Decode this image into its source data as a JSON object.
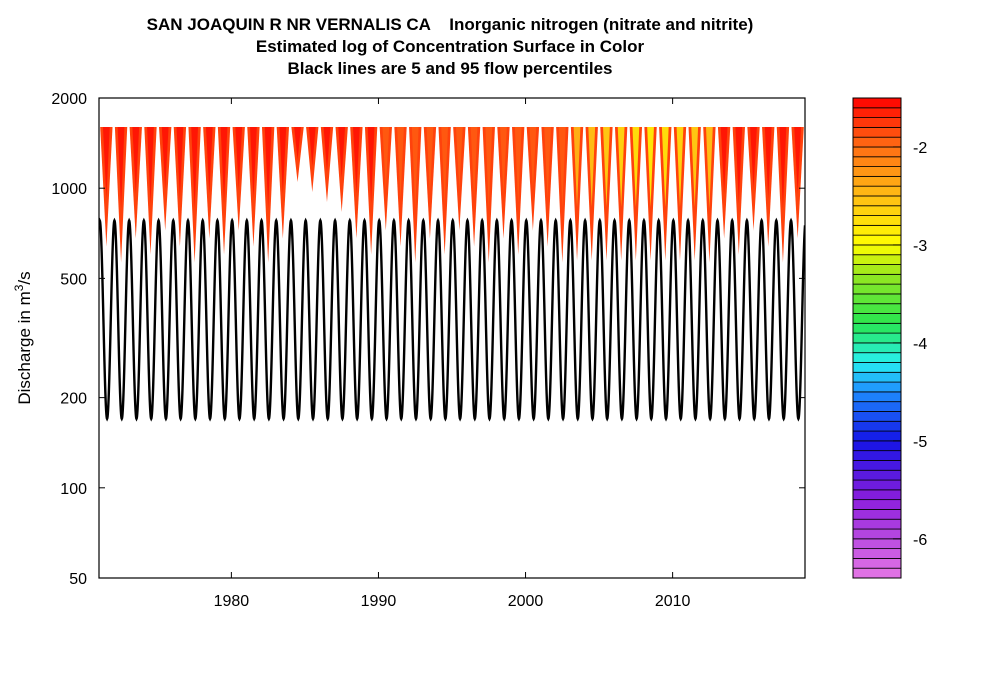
{
  "chart_data": {
    "type": "heatmap",
    "title_lines": [
      "SAN JOAQUIN R NR VERNALIS CA    Inorganic nitrogen (nitrate and nitrite)",
      "Estimated log of Concentration Surface in Color",
      "Black lines are 5 and 95 flow percentiles"
    ],
    "ylabel": {
      "prefix": "Discharge in m",
      "superscript": "3",
      "suffix": "/s"
    },
    "xlabel": "",
    "x_axis": {
      "range": [
        1971,
        2019
      ],
      "ticks": [
        1980,
        1990,
        2000,
        2010
      ]
    },
    "y_axis": {
      "scale": "log",
      "range": [
        50,
        2000
      ],
      "ticks": [
        50,
        100,
        200,
        500,
        1000,
        2000
      ],
      "tick_labels": [
        "50",
        "100",
        "200",
        "500",
        "1000",
        "2000"
      ]
    },
    "surface": {
      "y_top": 1600,
      "years": [
        1971,
        2019
      ],
      "cycles_per_year": 1,
      "value_range": [
        -2.9,
        -1.5
      ]
    },
    "flow_percentiles": [
      {
        "name": "95 percentile",
        "min": 760,
        "max": 780
      },
      {
        "name": "5 percentile",
        "min": 170,
        "max": 760
      }
    ],
    "colorbar": {
      "range": [
        -6.4,
        -1.5
      ],
      "ticks": [
        -2,
        -3,
        -4,
        -5,
        -6
      ],
      "tick_labels": [
        "-2",
        "-3",
        "-4",
        "-5",
        "-6"
      ]
    },
    "grid": false,
    "legend": "colorbar-right"
  }
}
